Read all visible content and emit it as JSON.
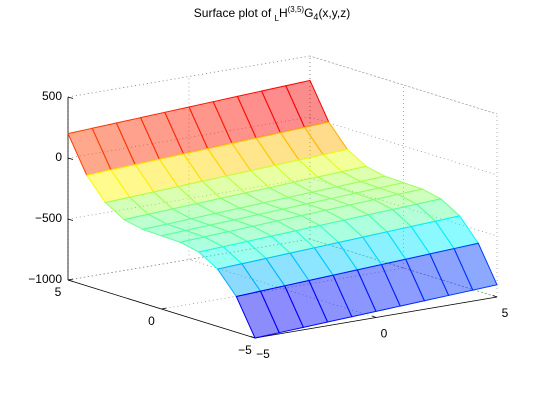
{
  "chart_data": {
    "type": "surface",
    "title": [
      "Surface plot of ",
      "L",
      "H",
      "(3,5)",
      "G",
      "4",
      "(x,y,z)"
    ],
    "x": [
      -5,
      -4,
      -3,
      -2,
      -1,
      0,
      1,
      2,
      3,
      4,
      5
    ],
    "y": [
      -5,
      -4,
      -3,
      -2,
      -1,
      0,
      1,
      2,
      3,
      4,
      5
    ],
    "z": [
      [
        -1000,
        -990,
        -980,
        -970,
        -960,
        -950,
        -940,
        -930,
        -920,
        -910,
        -900
      ],
      [
        -707,
        -697,
        -687,
        -677,
        -667,
        -657,
        -647,
        -637,
        -627,
        -617,
        -607
      ],
      [
        -530,
        -520,
        -510,
        -500,
        -490,
        -480,
        -470,
        -460,
        -450,
        -440,
        -430
      ],
      [
        -438,
        -428,
        -418,
        -408,
        -398,
        -388,
        -378,
        -368,
        -358,
        -348,
        -338
      ],
      [
        -405,
        -395,
        -385,
        -375,
        -365,
        -355,
        -345,
        -335,
        -325,
        -315,
        -305
      ],
      [
        -400,
        -390,
        -380,
        -370,
        -360,
        -350,
        -340,
        -330,
        -320,
        -310,
        -300
      ],
      [
        -395,
        -385,
        -375,
        -365,
        -355,
        -345,
        -335,
        -325,
        -315,
        -305,
        -295
      ],
      [
        -362,
        -352,
        -342,
        -332,
        -322,
        -312,
        -302,
        -292,
        -282,
        -272,
        -262
      ],
      [
        -270,
        -260,
        -250,
        -240,
        -230,
        -220,
        -210,
        -200,
        -190,
        -180,
        -170
      ],
      [
        -93,
        -83,
        -73,
        -63,
        -53,
        -43,
        -33,
        -23,
        -13,
        -3,
        7
      ],
      [
        200,
        210,
        220,
        230,
        240,
        250,
        260,
        270,
        280,
        290,
        300
      ]
    ],
    "xlim": [
      -5,
      5
    ],
    "ylim": [
      -5,
      5
    ],
    "zlim": [
      -1000,
      500
    ],
    "xticks": [
      {
        "value": -5,
        "label": "−5"
      },
      0,
      5
    ],
    "yticks": [
      {
        "value": -5,
        "label": "−5"
      },
      0,
      5
    ],
    "zticks": [
      {
        "value": -1000,
        "label": "−1000"
      },
      {
        "value": -500,
        "label": "−500"
      },
      0,
      500
    ],
    "colormap": "jet",
    "grid": true
  }
}
